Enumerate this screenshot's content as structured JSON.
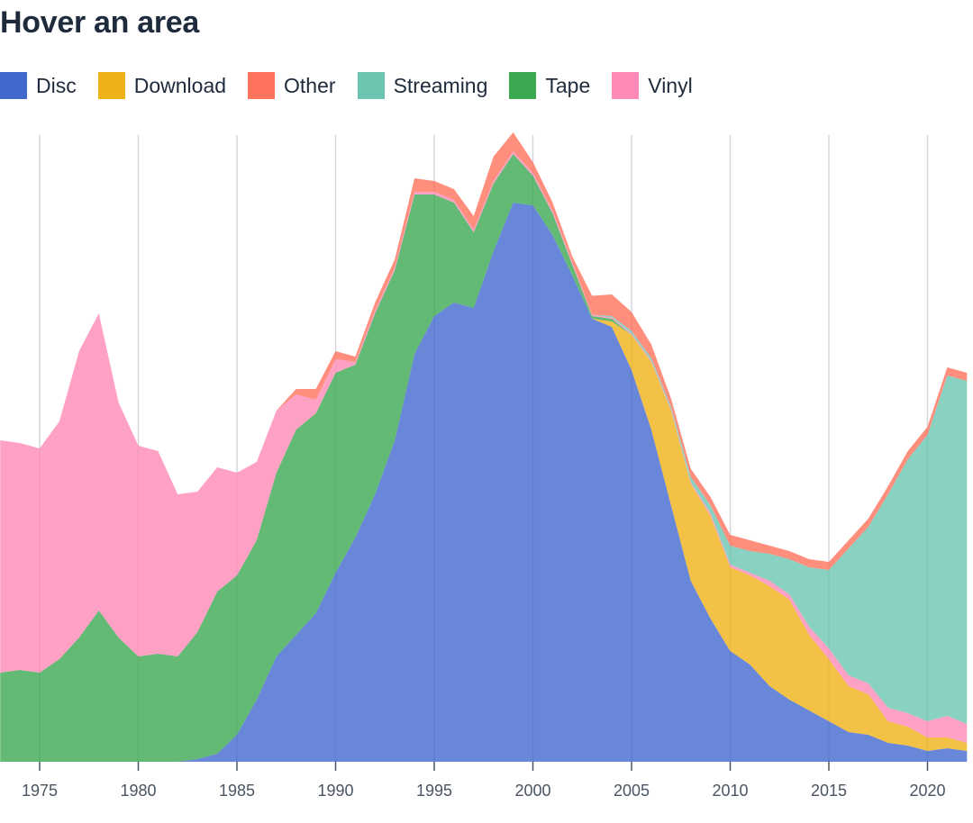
{
  "chart_data": {
    "type": "area",
    "stacked": true,
    "title": "Hover an area",
    "xlabel": "",
    "ylabel": "",
    "x": [
      1973,
      1974,
      1975,
      1976,
      1977,
      1978,
      1979,
      1980,
      1981,
      1982,
      1983,
      1984,
      1985,
      1986,
      1987,
      1988,
      1989,
      1990,
      1991,
      1992,
      1993,
      1994,
      1995,
      1996,
      1997,
      1998,
      1999,
      2000,
      2001,
      2002,
      2003,
      2004,
      2005,
      2006,
      2007,
      2008,
      2009,
      2010,
      2011,
      2012,
      2013,
      2014,
      2015,
      2016,
      2017,
      2018,
      2019,
      2020,
      2021,
      2022
    ],
    "xlim": [
      1973,
      2022
    ],
    "ylim": [
      0,
      24
    ],
    "x_ticks": [
      "1975",
      "1980",
      "1985",
      "1990",
      "1995",
      "2000",
      "2005",
      "2010",
      "2015",
      "2020"
    ],
    "y_axis_shown": false,
    "grid": "vertical lines at x ticks",
    "legend_position": "top",
    "fill_opacity": 0.8,
    "series": [
      {
        "name": "Disc",
        "color": "#4269d0",
        "values": [
          0,
          0,
          0,
          0,
          0,
          0,
          0,
          0,
          0,
          0,
          0.1,
          0.3,
          1.0,
          2.3,
          3.9,
          4.7,
          5.5,
          7.0,
          8.3,
          9.9,
          11.9,
          15.1,
          16.5,
          17.0,
          16.8,
          18.9,
          20.7,
          20.6,
          19.5,
          18.0,
          16.4,
          16.1,
          14.5,
          12.3,
          9.5,
          6.7,
          5.3,
          4.1,
          3.6,
          2.8,
          2.3,
          1.9,
          1.5,
          1.1,
          1.0,
          0.7,
          0.6,
          0.4,
          0.5,
          0.4
        ]
      },
      {
        "name": "Download",
        "color": "#efb118",
        "values": [
          0,
          0,
          0,
          0,
          0,
          0,
          0,
          0,
          0,
          0,
          0,
          0,
          0,
          0,
          0,
          0,
          0,
          0,
          0,
          0,
          0,
          0,
          0,
          0,
          0,
          0,
          0,
          0,
          0,
          0,
          0,
          0.2,
          1.3,
          2.5,
          3.5,
          3.6,
          3.8,
          3.1,
          3.3,
          3.7,
          3.7,
          2.8,
          2.3,
          1.7,
          1.5,
          0.8,
          0.7,
          0.5,
          0.4,
          0.3
        ]
      },
      {
        "name": "Tape",
        "color": "#3ca951",
        "values": [
          3.3,
          3.4,
          3.3,
          3.8,
          4.6,
          5.6,
          4.6,
          3.9,
          4.0,
          3.9,
          4.7,
          6.0,
          5.9,
          5.9,
          6.8,
          7.6,
          7.4,
          7.4,
          6.4,
          6.7,
          6.3,
          5.9,
          4.5,
          3.7,
          2.8,
          2.5,
          1.8,
          1.1,
          0.8,
          0.4,
          0.1,
          0.1,
          0,
          0,
          0,
          0,
          0,
          0,
          0,
          0,
          0,
          0,
          0,
          0,
          0,
          0,
          0,
          0,
          0,
          0
        ]
      },
      {
        "name": "Vinyl",
        "color": "#ff8ab7",
        "values": [
          8.6,
          8.4,
          8.3,
          8.8,
          10.6,
          11.0,
          8.7,
          7.8,
          7.5,
          6.0,
          5.2,
          4.6,
          3.8,
          2.9,
          2.3,
          1.3,
          0.5,
          0.5,
          0.1,
          0.1,
          0.1,
          0.1,
          0.1,
          0.1,
          0.1,
          0.1,
          0.1,
          0.1,
          0.1,
          0.1,
          0.05,
          0.05,
          0.05,
          0.05,
          0.05,
          0.05,
          0.1,
          0.1,
          0.1,
          0.2,
          0.2,
          0.3,
          0.4,
          0.4,
          0.4,
          0.5,
          0.5,
          0.6,
          0.8,
          0.7
        ]
      },
      {
        "name": "Streaming",
        "color": "#6cc5b0",
        "values": [
          0,
          0,
          0,
          0,
          0,
          0,
          0,
          0,
          0,
          0,
          0,
          0,
          0,
          0,
          0,
          0,
          0,
          0,
          0,
          0,
          0,
          0,
          0,
          0,
          0,
          0,
          0,
          0,
          0,
          0,
          0,
          0.05,
          0.1,
          0.1,
          0.1,
          0.2,
          0.3,
          0.7,
          0.8,
          1.0,
          1.3,
          2.2,
          2.9,
          4.7,
          5.8,
          7.9,
          9.4,
          10.6,
          12.6,
          12.7
        ]
      },
      {
        "name": "Other",
        "color": "#ff725c",
        "values": [
          0,
          0,
          0,
          0,
          0,
          0,
          0,
          0,
          0,
          0,
          0,
          0,
          0,
          0,
          0,
          0.2,
          0.4,
          0.3,
          0.2,
          0.3,
          0.3,
          0.5,
          0.4,
          0.4,
          0.5,
          0.9,
          0.7,
          0.4,
          0.3,
          0.2,
          0.7,
          0.8,
          0.7,
          0.5,
          0.3,
          0.3,
          0.3,
          0.4,
          0.4,
          0.3,
          0.3,
          0.3,
          0.3,
          0.3,
          0.3,
          0.3,
          0.3,
          0.3,
          0.3,
          0.3
        ]
      }
    ],
    "legend": [
      {
        "name": "Disc",
        "color": "#4269d0"
      },
      {
        "name": "Download",
        "color": "#efb118"
      },
      {
        "name": "Other",
        "color": "#ff725c"
      },
      {
        "name": "Streaming",
        "color": "#6cc5b0"
      },
      {
        "name": "Tape",
        "color": "#3ca951"
      },
      {
        "name": "Vinyl",
        "color": "#ff8ab7"
      }
    ]
  }
}
